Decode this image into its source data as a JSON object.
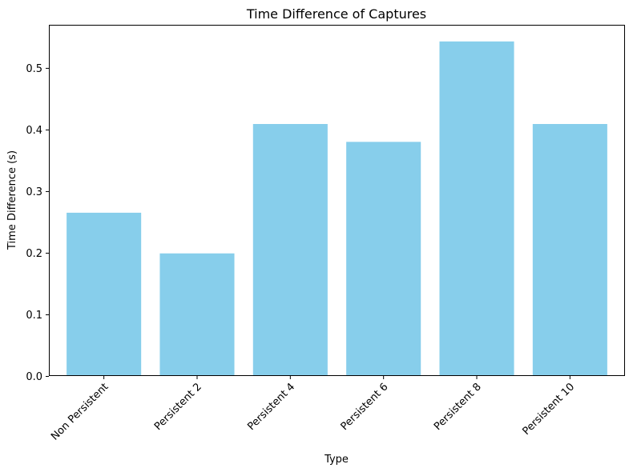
{
  "chart_data": {
    "type": "bar",
    "title": "Time Difference of Captures",
    "xlabel": "Type",
    "ylabel": "Time Difference (s)",
    "categories": [
      "Non Persistent",
      "Persistent 2",
      "Persistent 4",
      "Persistent 6",
      "Persistent 8",
      "Persistent 10"
    ],
    "values": [
      0.265,
      0.199,
      0.409,
      0.38,
      0.543,
      0.409
    ],
    "ylim": [
      0,
      0.57
    ],
    "yticks": [
      "0.0",
      "0.1",
      "0.2",
      "0.3",
      "0.4",
      "0.5"
    ],
    "bar_color": "#87ceeb",
    "grid": false,
    "legend": "none"
  }
}
